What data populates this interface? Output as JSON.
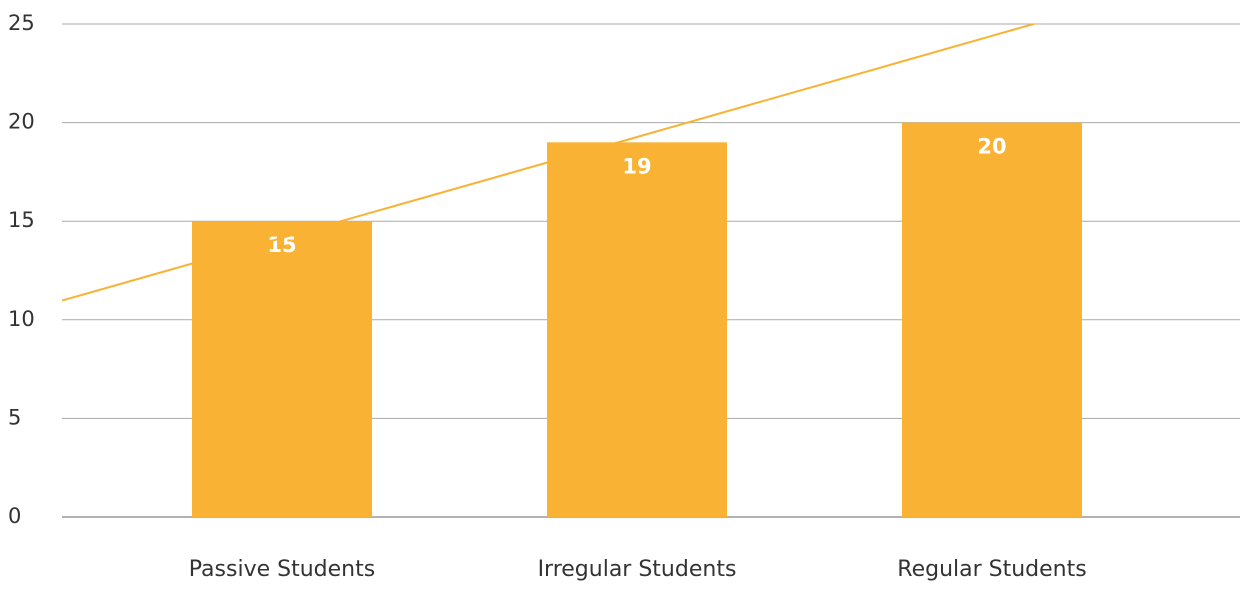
{
  "chart_data": {
    "type": "bar",
    "categories": [
      "Passive Students",
      "Irregular Students",
      "Regular Students"
    ],
    "values": [
      15,
      19,
      20
    ],
    "color": "#f9b233",
    "trend": {
      "color": "#f9b233",
      "values": [
        14.15,
        19.27,
        24.4
      ]
    },
    "ylim": [
      0,
      25
    ],
    "yticks": [
      0,
      5,
      10,
      15,
      20,
      25
    ],
    "grid": true
  }
}
